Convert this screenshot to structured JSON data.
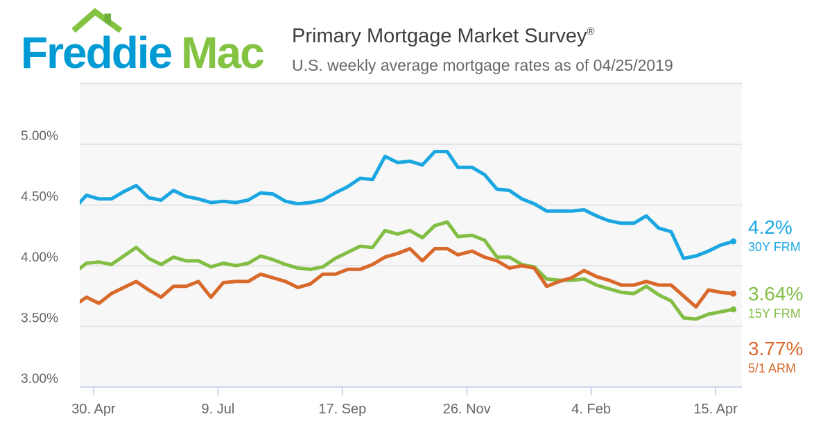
{
  "logo": {
    "word1": "Freddie",
    "word2": "Mac"
  },
  "header": {
    "title": "Primary Mortgage Market Survey",
    "registered": "®",
    "subtitle": "U.S. weekly average mortgage rates as of 04/25/2019"
  },
  "colors": {
    "logo_blue": "#009BD5",
    "logo_green": "#83C341",
    "logo_green_dark": "#72B03C",
    "title_text": "#3E3E40",
    "subtitle_text": "#68686C",
    "axis_label": "#666666",
    "grid_line": "#E4E4E4",
    "axis_line": "#CCD6EB",
    "plot_bg": "#F7F7F7"
  },
  "chart_data": {
    "type": "line",
    "title": "Primary Mortgage Market Survey",
    "subtitle": "U.S. weekly average mortgage rates as of 04/25/2019",
    "xlabel": "",
    "ylabel": "",
    "grid": true,
    "legend_position": "right",
    "ylim": [
      3.0,
      5.5
    ],
    "y_ticks": [
      {
        "label": "5.00%",
        "value": 5.0
      },
      {
        "label": "4.50%",
        "value": 4.5
      },
      {
        "label": "4.00%",
        "value": 4.0
      },
      {
        "label": "3.50%",
        "value": 3.5
      },
      {
        "label": "3.00%",
        "value": 3.0
      }
    ],
    "y_gridlines": [
      5.5,
      5.0,
      4.5,
      4.0,
      3.5
    ],
    "x_ticks": [
      {
        "label": "30. Apr",
        "date": "2018-04-30"
      },
      {
        "label": "9. Jul",
        "date": "2018-07-09"
      },
      {
        "label": "17. Sep",
        "date": "2018-09-17"
      },
      {
        "label": "26. Nov",
        "date": "2018-11-26"
      },
      {
        "label": "4. Feb",
        "date": "2019-02-04"
      },
      {
        "label": "15. Apr",
        "date": "2019-04-15"
      }
    ],
    "dates": [
      "2018-04-19",
      "2018-04-26",
      "2018-05-03",
      "2018-05-10",
      "2018-05-17",
      "2018-05-24",
      "2018-05-31",
      "2018-06-07",
      "2018-06-14",
      "2018-06-21",
      "2018-06-28",
      "2018-07-05",
      "2018-07-12",
      "2018-07-19",
      "2018-07-26",
      "2018-08-02",
      "2018-08-09",
      "2018-08-16",
      "2018-08-23",
      "2018-08-30",
      "2018-09-06",
      "2018-09-13",
      "2018-09-20",
      "2018-09-27",
      "2018-10-04",
      "2018-10-11",
      "2018-10-18",
      "2018-10-25",
      "2018-11-01",
      "2018-11-08",
      "2018-11-15",
      "2018-11-21",
      "2018-11-29",
      "2018-12-06",
      "2018-12-13",
      "2018-12-20",
      "2018-12-27",
      "2019-01-03",
      "2019-01-10",
      "2019-01-17",
      "2019-01-24",
      "2019-01-31",
      "2019-02-07",
      "2019-02-14",
      "2019-02-21",
      "2019-02-28",
      "2019-03-07",
      "2019-03-14",
      "2019-03-21",
      "2019-03-28",
      "2019-04-04",
      "2019-04-11",
      "2019-04-18",
      "2019-04-25"
    ],
    "series": [
      {
        "name": "30Y FRM",
        "final_value_label": "4.2%",
        "color": "#1AA7E1",
        "values": [
          4.47,
          4.58,
          4.55,
          4.55,
          4.61,
          4.66,
          4.56,
          4.54,
          4.62,
          4.57,
          4.55,
          4.52,
          4.53,
          4.52,
          4.54,
          4.6,
          4.59,
          4.53,
          4.51,
          4.52,
          4.54,
          4.6,
          4.65,
          4.72,
          4.71,
          4.9,
          4.85,
          4.86,
          4.83,
          4.94,
          4.94,
          4.81,
          4.81,
          4.75,
          4.63,
          4.62,
          4.55,
          4.51,
          4.45,
          4.45,
          4.45,
          4.46,
          4.41,
          4.37,
          4.35,
          4.35,
          4.41,
          4.31,
          4.28,
          4.06,
          4.08,
          4.12,
          4.17,
          4.2
        ]
      },
      {
        "name": "15Y FRM",
        "final_value_label": "3.64%",
        "color": "#82BE44",
        "values": [
          3.94,
          4.02,
          4.03,
          4.01,
          4.08,
          4.15,
          4.06,
          4.01,
          4.07,
          4.04,
          4.04,
          3.99,
          4.02,
          4.0,
          4.02,
          4.08,
          4.05,
          4.01,
          3.98,
          3.97,
          3.99,
          4.06,
          4.11,
          4.16,
          4.15,
          4.29,
          4.26,
          4.29,
          4.23,
          4.33,
          4.36,
          4.24,
          4.25,
          4.21,
          4.07,
          4.07,
          4.01,
          3.99,
          3.89,
          3.88,
          3.88,
          3.89,
          3.84,
          3.81,
          3.78,
          3.77,
          3.83,
          3.76,
          3.71,
          3.57,
          3.56,
          3.6,
          3.62,
          3.64
        ]
      },
      {
        "name": "5/1 ARM",
        "final_value_label": "3.77%",
        "color": "#D8692B",
        "values": [
          3.67,
          3.74,
          3.69,
          3.77,
          3.82,
          3.87,
          3.8,
          3.74,
          3.83,
          3.83,
          3.87,
          3.74,
          3.86,
          3.87,
          3.87,
          3.93,
          3.9,
          3.87,
          3.82,
          3.85,
          3.93,
          3.93,
          3.97,
          3.97,
          4.01,
          4.07,
          4.1,
          4.14,
          4.04,
          4.14,
          4.14,
          4.09,
          4.12,
          4.07,
          4.04,
          3.98,
          4.0,
          3.98,
          3.83,
          3.87,
          3.9,
          3.96,
          3.91,
          3.88,
          3.84,
          3.84,
          3.87,
          3.84,
          3.84,
          3.75,
          3.66,
          3.8,
          3.78,
          3.77
        ]
      }
    ]
  }
}
